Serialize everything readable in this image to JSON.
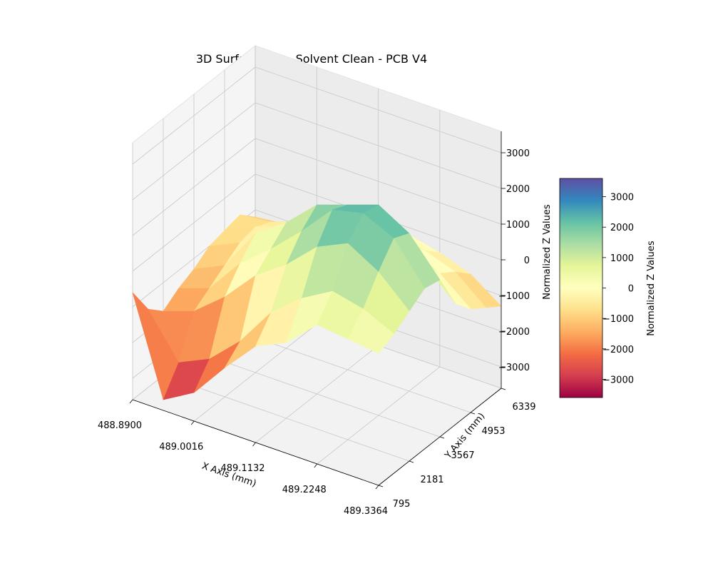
{
  "chart_data": {
    "type": "surface3d",
    "title": "3D Surface Plot - Solvent Clean - PCB V4",
    "xlabel": "X Axis (mm)",
    "ylabel": "Y Axis (mm)",
    "zlabel": "Normalized Z Values",
    "colorbar_label": "Normalized Z Values",
    "colormap": "Spectral",
    "xlim": [
      488.89,
      489.3364
    ],
    "ylim": [
      795,
      6339
    ],
    "zlim": [
      -3600,
      3600
    ],
    "x_ticks": [
      "488.8900",
      "489.0016",
      "489.1132",
      "489.2248",
      "489.3364"
    ],
    "y_ticks": [
      "795",
      "2181",
      "3567",
      "4953",
      "6339"
    ],
    "z_ticks": [
      "3000",
      "2000",
      "1000",
      "0",
      "−1000",
      "−2000",
      "−3000"
    ],
    "colorbar_ticks": [
      "3000",
      "2000",
      "1000",
      "0",
      "−1000",
      "−2000",
      "−3000"
    ],
    "colorbar_range": [
      -3600,
      3600
    ],
    "grid": true,
    "x": [
      488.89,
      488.9458,
      489.0016,
      489.0574,
      489.1132,
      489.169,
      489.2248,
      489.2806,
      489.3364
    ],
    "y": [
      795,
      1488,
      2181,
      2874,
      3567,
      4260,
      4953,
      5646,
      6339
    ],
    "z": [
      [
        -600,
        -3300,
        -2800,
        -1800,
        -900,
        -500,
        300,
        200,
        100
      ],
      [
        -1400,
        -2600,
        -2200,
        -1400,
        -300,
        400,
        900,
        700,
        300
      ],
      [
        -1800,
        -1500,
        -800,
        100,
        700,
        1500,
        1900,
        1400,
        600
      ],
      [
        -1500,
        -1200,
        -200,
        500,
        1300,
        2200,
        2400,
        2000,
        900
      ],
      [
        -1300,
        -900,
        300,
        900,
        1700,
        2000,
        2300,
        1800,
        800
      ],
      [
        -1000,
        -600,
        0,
        700,
        1100,
        1200,
        1000,
        600,
        -200
      ],
      [
        -900,
        -500,
        -200,
        300,
        500,
        600,
        400,
        0,
        -700
      ],
      [
        -800,
        -700,
        -400,
        0,
        200,
        300,
        0,
        -300,
        -1000
      ],
      [
        -1200,
        -1100,
        -900,
        -600,
        -400,
        -200,
        -400,
        -700,
        -1300
      ]
    ]
  }
}
